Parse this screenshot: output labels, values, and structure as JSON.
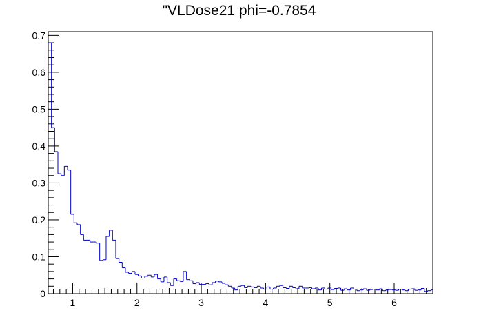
{
  "chart_data": {
    "type": "histogram",
    "title": "\"VLDose21 phi=-0.7854",
    "xlabel": "",
    "ylabel": "",
    "xlim": [
      0.62,
      6.6
    ],
    "ylim": [
      0,
      0.71
    ],
    "grid": false,
    "legend": "none",
    "line_color": "#0000cc",
    "x_ticks": [
      {
        "value": 1,
        "label": "1"
      },
      {
        "value": 2,
        "label": "2"
      },
      {
        "value": 3,
        "label": "3"
      },
      {
        "value": 4,
        "label": "4"
      },
      {
        "value": 5,
        "label": "5"
      },
      {
        "value": 6,
        "label": "6"
      }
    ],
    "y_ticks": [
      {
        "value": 0,
        "label": "0"
      },
      {
        "value": 0.1,
        "label": "0.1"
      },
      {
        "value": 0.2,
        "label": "0.2"
      },
      {
        "value": 0.3,
        "label": "0.3"
      },
      {
        "value": 0.4,
        "label": "0.4"
      },
      {
        "value": 0.5,
        "label": "0.5"
      },
      {
        "value": 0.6,
        "label": "0.6"
      },
      {
        "value": 0.7,
        "label": "0.7"
      }
    ],
    "bin_edges_start": 0.62,
    "bin_width": 0.05,
    "values": [
      0.68,
      0.45,
      0.385,
      0.325,
      0.32,
      0.345,
      0.335,
      0.215,
      0.192,
      0.187,
      0.16,
      0.145,
      0.145,
      0.14,
      0.14,
      0.137,
      0.09,
      0.092,
      0.155,
      0.172,
      0.145,
      0.095,
      0.085,
      0.07,
      0.058,
      0.055,
      0.06,
      0.052,
      0.048,
      0.042,
      0.047,
      0.05,
      0.045,
      0.052,
      0.04,
      0.032,
      0.045,
      0.03,
      0.022,
      0.04,
      0.035,
      0.033,
      0.06,
      0.038,
      0.035,
      0.027,
      0.03,
      0.025,
      0.025,
      0.027,
      0.024,
      0.03,
      0.034,
      0.032,
      0.028,
      0.024,
      0.02,
      0.015,
      0.01,
      0.02,
      0.022,
      0.016,
      0.02,
      0.018,
      0.016,
      0.02,
      0.015,
      0.012,
      0.018,
      0.012,
      0.015,
      0.02,
      0.022,
      0.016,
      0.014,
      0.02,
      0.016,
      0.013,
      0.02,
      0.015,
      0.015,
      0.016,
      0.013,
      0.015,
      0.01,
      0.015,
      0.012,
      0.015,
      0.011,
      0.014,
      0.015,
      0.009,
      0.013,
      0.01,
      0.015,
      0.012,
      0.008,
      0.01,
      0.013,
      0.009,
      0.011,
      0.012,
      0.01,
      0.013,
      0.008,
      0.01,
      0.011,
      0.01,
      0.009,
      0.012,
      0.01,
      0.008,
      0.012,
      0.013,
      0.009,
      0.01,
      0.014,
      0.006,
      0.008,
      0.01
    ]
  }
}
